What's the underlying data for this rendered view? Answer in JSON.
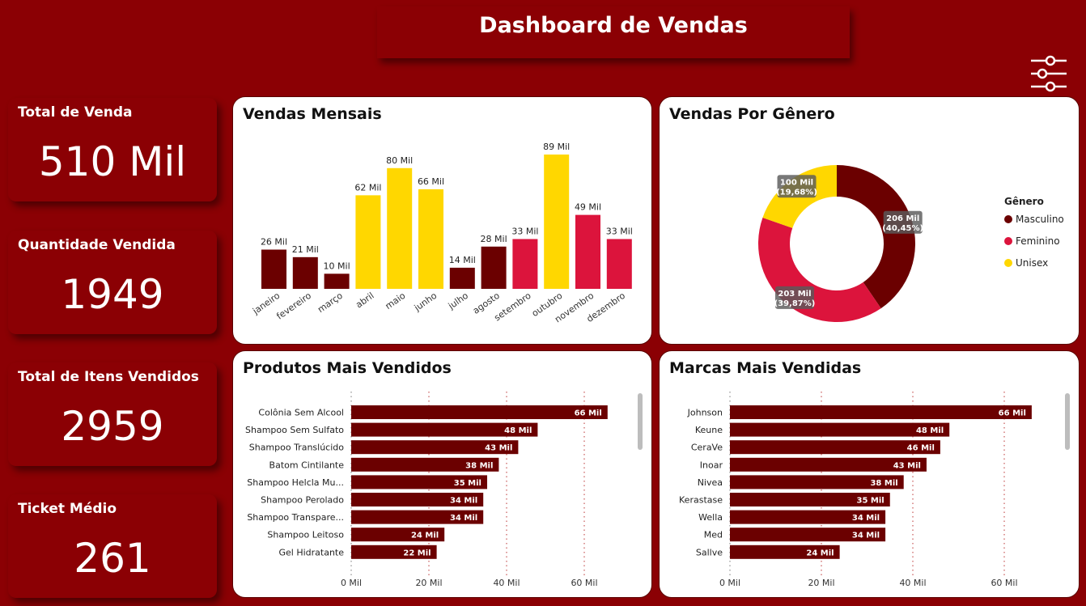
{
  "header": {
    "title": "Dashboard de Vendas",
    "filter_icon": "sliders-icon"
  },
  "kpis": [
    {
      "label": "Total de Venda",
      "value": "510 Mil"
    },
    {
      "label": "Quantidade Vendida",
      "value": "1949"
    },
    {
      "label": "Total de Itens Vendidos",
      "value": "2959"
    },
    {
      "label": "Ticket Médio",
      "value": "261"
    }
  ],
  "colors": {
    "background": "#8b0004",
    "dark_red": "#6b0000",
    "crimson": "#dc143c",
    "yellow": "#ffd700",
    "bar": "#6b0000"
  },
  "cards": {
    "monthly": "Vendas Mensais",
    "gender": "Vendas Por Gênero",
    "products": "Produtos Mais Vendidos",
    "brands": "Marcas Mais Vendidas"
  },
  "chart_data": [
    {
      "type": "bar",
      "title": "Vendas Mensais",
      "categories": [
        "janeiro",
        "fevereiro",
        "março",
        "abril",
        "maio",
        "junho",
        "julho",
        "agosto",
        "setembro",
        "outubro",
        "novembro",
        "dezembro"
      ],
      "values": [
        26,
        21,
        10,
        62,
        80,
        66,
        14,
        28,
        33,
        89,
        49,
        33
      ],
      "labels": [
        "26 Mil",
        "21 Mil",
        "10 Mil",
        "62 Mil",
        "80 Mil",
        "66 Mil",
        "14 Mil",
        "28 Mil",
        "33 Mil",
        "89 Mil",
        "49 Mil",
        "33 Mil"
      ],
      "colors": [
        "#6b0000",
        "#6b0000",
        "#6b0000",
        "#ffd700",
        "#ffd700",
        "#ffd700",
        "#6b0000",
        "#6b0000",
        "#dc143c",
        "#ffd700",
        "#dc143c",
        "#dc143c"
      ],
      "ylim": [
        0,
        89
      ]
    },
    {
      "type": "pie",
      "title": "Vendas Por Gênero",
      "legend_title": "Gênero",
      "legend_position": "right",
      "slices": [
        {
          "name": "Masculino",
          "value": 206,
          "label": "206 Mil",
          "pct": "(40,45%)",
          "color": "#6b0000"
        },
        {
          "name": "Feminino",
          "value": 203,
          "label": "203 Mil",
          "pct": "(39,87%)",
          "color": "#dc143c"
        },
        {
          "name": "Unisex",
          "value": 100,
          "label": "100 Mil",
          "pct": "(19,68%)",
          "color": "#ffd700"
        }
      ]
    },
    {
      "type": "bar",
      "orientation": "horizontal",
      "title": "Produtos Mais Vendidos",
      "categories": [
        "Colônia Sem Alcool",
        "Shampoo Sem Sulfato",
        "Shampoo Translúcido",
        "Batom Cintilante",
        "Shampoo Helcla Mu...",
        "Shampoo Perolado",
        "Shampoo Transpare...",
        "Shampoo Leitoso",
        "Gel Hidratante"
      ],
      "values": [
        66,
        48,
        43,
        38,
        35,
        34,
        34,
        24,
        22
      ],
      "labels": [
        "66 Mil",
        "48 Mil",
        "43 Mil",
        "38 Mil",
        "35 Mil",
        "34 Mil",
        "34 Mil",
        "24 Mil",
        "22 Mil"
      ],
      "ticks": [
        "0 Mil",
        "20 Mil",
        "40 Mil",
        "60 Mil"
      ],
      "xlim": [
        0,
        80
      ]
    },
    {
      "type": "bar",
      "orientation": "horizontal",
      "title": "Marcas Mais Vendidas",
      "categories": [
        "Johnson",
        "Keune",
        "CeraVe",
        "Inoar",
        "Nivea",
        "Kerastase",
        "Wella",
        "Med",
        "Sallve"
      ],
      "values": [
        66,
        48,
        46,
        43,
        38,
        35,
        34,
        34,
        24
      ],
      "labels": [
        "66 Mil",
        "48 Mil",
        "46 Mil",
        "43 Mil",
        "38 Mil",
        "35 Mil",
        "34 Mil",
        "34 Mil",
        "24 Mil"
      ],
      "ticks": [
        "0 Mil",
        "20 Mil",
        "40 Mil",
        "60 Mil"
      ],
      "xlim": [
        0,
        80
      ]
    }
  ]
}
